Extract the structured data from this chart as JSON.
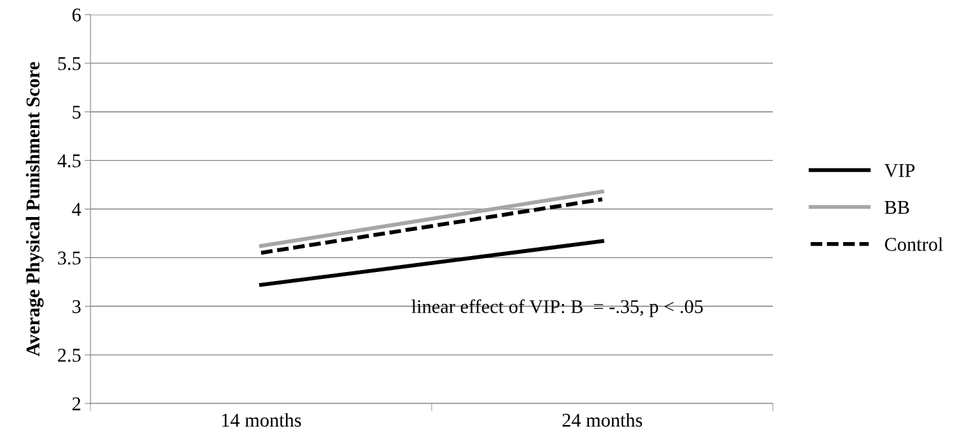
{
  "chart_data": {
    "type": "line",
    "ylabel": "Average Physical Punishment Score",
    "categories": [
      "14 months",
      "24 months"
    ],
    "series": [
      {
        "name": "VIP",
        "color": "#000000",
        "values": [
          3.22,
          3.67
        ],
        "line_style": "solid"
      },
      {
        "name": "BB",
        "color": "#a6a6a6",
        "values": [
          3.62,
          4.18
        ],
        "line_style": "solid"
      },
      {
        "name": "Control",
        "color": "#000000",
        "values": [
          3.55,
          4.1
        ],
        "line_style": "dashed"
      }
    ],
    "ylim": [
      2,
      6
    ],
    "yticks": [
      2,
      2.5,
      3,
      3.5,
      4,
      4.5,
      5,
      5.5,
      6
    ],
    "grid": "y",
    "legend": "right",
    "marker": "none",
    "annotations": [
      "linear effect of VIP: B  = -.35, p < .05"
    ]
  }
}
